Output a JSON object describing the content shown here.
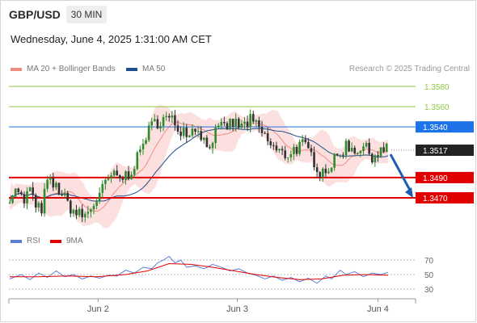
{
  "header": {
    "symbol": "GBP/USD",
    "timeframe": "30 MIN",
    "datetime": "Wednesday, June 4, 2025 1:31:00 AM CET",
    "credit": "Research © 2025 Trading Central"
  },
  "legend": {
    "ma20": {
      "label": "MA 20 + Bollinger Bands",
      "color": "#f28b82"
    },
    "ma50": {
      "label": "MA 50",
      "color": "#1f4e8c"
    },
    "rsi": {
      "label": "RSI",
      "color": "#5b7fd6"
    },
    "rsi_ma": {
      "label": "9MA",
      "color": "#e00000"
    }
  },
  "chart_data": {
    "type": "candlestick",
    "price_axis_range": [
      1.344,
      1.359
    ],
    "x_tick_labels": [
      "Jun 2",
      "Jun 3",
      "Jun 4"
    ],
    "levels": [
      {
        "label": "1.3580",
        "value": 1.358,
        "kind": "resistance",
        "color": "#8cc63f"
      },
      {
        "label": "1.3560",
        "value": 1.356,
        "kind": "resistance",
        "color": "#8cc63f"
      },
      {
        "label": "1.3540",
        "value": 1.354,
        "kind": "pivot",
        "color": "#1e73e8"
      },
      {
        "label": "1.3517",
        "value": 1.3517,
        "kind": "last",
        "color": "#222222"
      },
      {
        "label": "1.3490",
        "value": 1.349,
        "kind": "support",
        "color": "#e00000"
      },
      {
        "label": "1.3470",
        "value": 1.347,
        "kind": "support",
        "color": "#e00000"
      }
    ],
    "forecast_arrow": {
      "from": 1.3513,
      "to": 1.347,
      "direction": "down",
      "color": "#1f5bb5"
    },
    "close_path": [
      [
        0,
        1.3472
      ],
      [
        6,
        1.3478
      ],
      [
        10,
        1.3462
      ],
      [
        14,
        1.3482
      ],
      [
        18,
        1.3458
      ],
      [
        22,
        1.346
      ],
      [
        26,
        1.3486
      ],
      [
        34,
        1.3478
      ],
      [
        40,
        1.3464
      ],
      [
        46,
        1.3454
      ],
      [
        52,
        1.3452
      ],
      [
        58,
        1.3464
      ],
      [
        64,
        1.3478
      ],
      [
        70,
        1.3492
      ],
      [
        76,
        1.3488
      ],
      [
        82,
        1.3494
      ],
      [
        88,
        1.3508
      ],
      [
        94,
        1.3532
      ],
      [
        100,
        1.3544
      ],
      [
        106,
        1.3548
      ],
      [
        112,
        1.3546
      ],
      [
        118,
        1.3538
      ],
      [
        124,
        1.3536
      ],
      [
        130,
        1.354
      ],
      [
        136,
        1.352
      ],
      [
        142,
        1.3534
      ],
      [
        148,
        1.354
      ],
      [
        154,
        1.3544
      ],
      [
        160,
        1.354
      ],
      [
        166,
        1.3546
      ],
      [
        172,
        1.3538
      ],
      [
        178,
        1.3526
      ],
      [
        184,
        1.3516
      ],
      [
        190,
        1.3512
      ],
      [
        196,
        1.3518
      ],
      [
        202,
        1.3522
      ],
      [
        208,
        1.3512
      ],
      [
        214,
        1.3496
      ],
      [
        220,
        1.35
      ],
      [
        226,
        1.351
      ],
      [
        232,
        1.3522
      ],
      [
        238,
        1.3518
      ],
      [
        244,
        1.352
      ],
      [
        250,
        1.3512
      ],
      [
        256,
        1.3516
      ],
      [
        261,
        1.3517
      ]
    ],
    "rsi": {
      "axis_labels": [
        "70",
        "50",
        "30"
      ],
      "levels": [
        70,
        50,
        30
      ],
      "range": [
        25,
        80
      ],
      "series": [
        [
          0,
          44
        ],
        [
          8,
          50
        ],
        [
          14,
          43
        ],
        [
          20,
          52
        ],
        [
          26,
          46
        ],
        [
          32,
          55
        ],
        [
          38,
          47
        ],
        [
          44,
          50
        ],
        [
          50,
          44
        ],
        [
          56,
          48
        ],
        [
          62,
          45
        ],
        [
          68,
          49
        ],
        [
          74,
          48
        ],
        [
          80,
          56
        ],
        [
          86,
          52
        ],
        [
          92,
          60
        ],
        [
          98,
          58
        ],
        [
          102,
          66
        ],
        [
          106,
          70
        ],
        [
          110,
          75
        ],
        [
          114,
          66
        ],
        [
          118,
          70
        ],
        [
          122,
          60
        ],
        [
          128,
          62
        ],
        [
          134,
          58
        ],
        [
          140,
          64
        ],
        [
          146,
          60
        ],
        [
          152,
          55
        ],
        [
          158,
          58
        ],
        [
          164,
          52
        ],
        [
          170,
          49
        ],
        [
          176,
          44
        ],
        [
          182,
          48
        ],
        [
          188,
          42
        ],
        [
          194,
          46
        ],
        [
          200,
          40
        ],
        [
          206,
          45
        ],
        [
          212,
          38
        ],
        [
          218,
          48
        ],
        [
          222,
          44
        ],
        [
          228,
          56
        ],
        [
          232,
          50
        ],
        [
          238,
          54
        ],
        [
          244,
          47
        ],
        [
          250,
          52
        ],
        [
          256,
          50
        ],
        [
          261,
          53
        ]
      ],
      "ma": [
        [
          0,
          47
        ],
        [
          20,
          47
        ],
        [
          40,
          48
        ],
        [
          60,
          47
        ],
        [
          80,
          50
        ],
        [
          95,
          55
        ],
        [
          110,
          65
        ],
        [
          125,
          64
        ],
        [
          140,
          60
        ],
        [
          155,
          55
        ],
        [
          170,
          50
        ],
        [
          185,
          46
        ],
        [
          200,
          43
        ],
        [
          215,
          44
        ],
        [
          230,
          49
        ],
        [
          245,
          50
        ],
        [
          261,
          49
        ]
      ]
    }
  }
}
